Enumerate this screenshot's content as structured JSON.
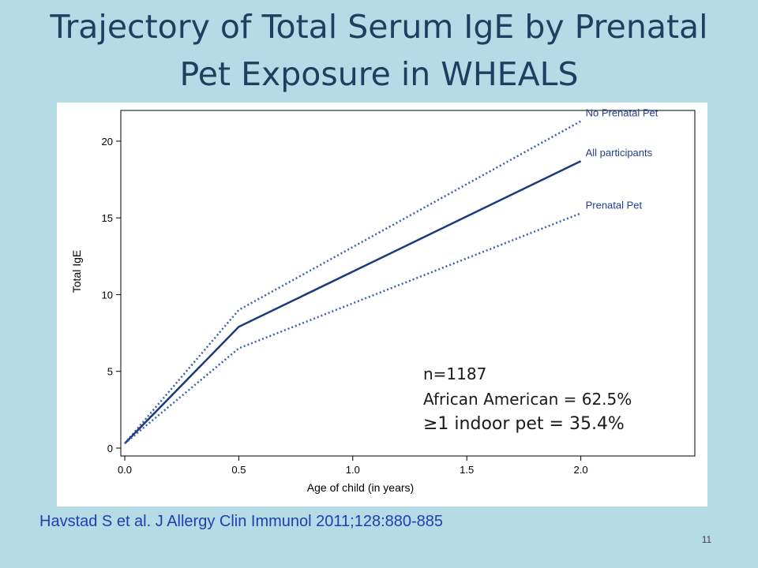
{
  "title_line1": "Trajectory of Total Serum IgE by Prenatal",
  "title_line2": "Pet Exposure in WHEALS",
  "chart_data": {
    "type": "line",
    "xlabel": "Age of child (in years)",
    "ylabel": "Total IgE",
    "xlim": [
      0.0,
      2.5
    ],
    "ylim": [
      0,
      22
    ],
    "x_ticks": [
      "0.0",
      "0.5",
      "1.0",
      "1.5",
      "2.0"
    ],
    "x_tick_values": [
      0.0,
      0.5,
      1.0,
      1.5,
      2.0
    ],
    "y_ticks": [
      "0",
      "5",
      "10",
      "15",
      "20"
    ],
    "y_tick_values": [
      0,
      5,
      10,
      15,
      20
    ],
    "grid": false,
    "series": [
      {
        "name": "No Prenatal Pet",
        "style": "dotted",
        "color": "#3a5fa8",
        "x": [
          0.0,
          0.5,
          2.0
        ],
        "y": [
          0.3,
          9.0,
          21.3
        ]
      },
      {
        "name": "All participants",
        "style": "solid",
        "color": "#1a3a7a",
        "x": [
          0.0,
          0.5,
          2.0
        ],
        "y": [
          0.3,
          7.9,
          18.7
        ]
      },
      {
        "name": "Prenatal Pet",
        "style": "dotted",
        "color": "#3a5fa8",
        "x": [
          0.0,
          0.5,
          2.0
        ],
        "y": [
          0.3,
          6.5,
          15.3
        ]
      }
    ]
  },
  "annotation": {
    "line1": "n=1187",
    "line2": "African American = 62.5%",
    "line3": "≥1 indoor pet = 35.4%"
  },
  "citation": "Havstad S et al. J Allergy Clin Immunol 2011;128:880-885",
  "slide_number": "11"
}
